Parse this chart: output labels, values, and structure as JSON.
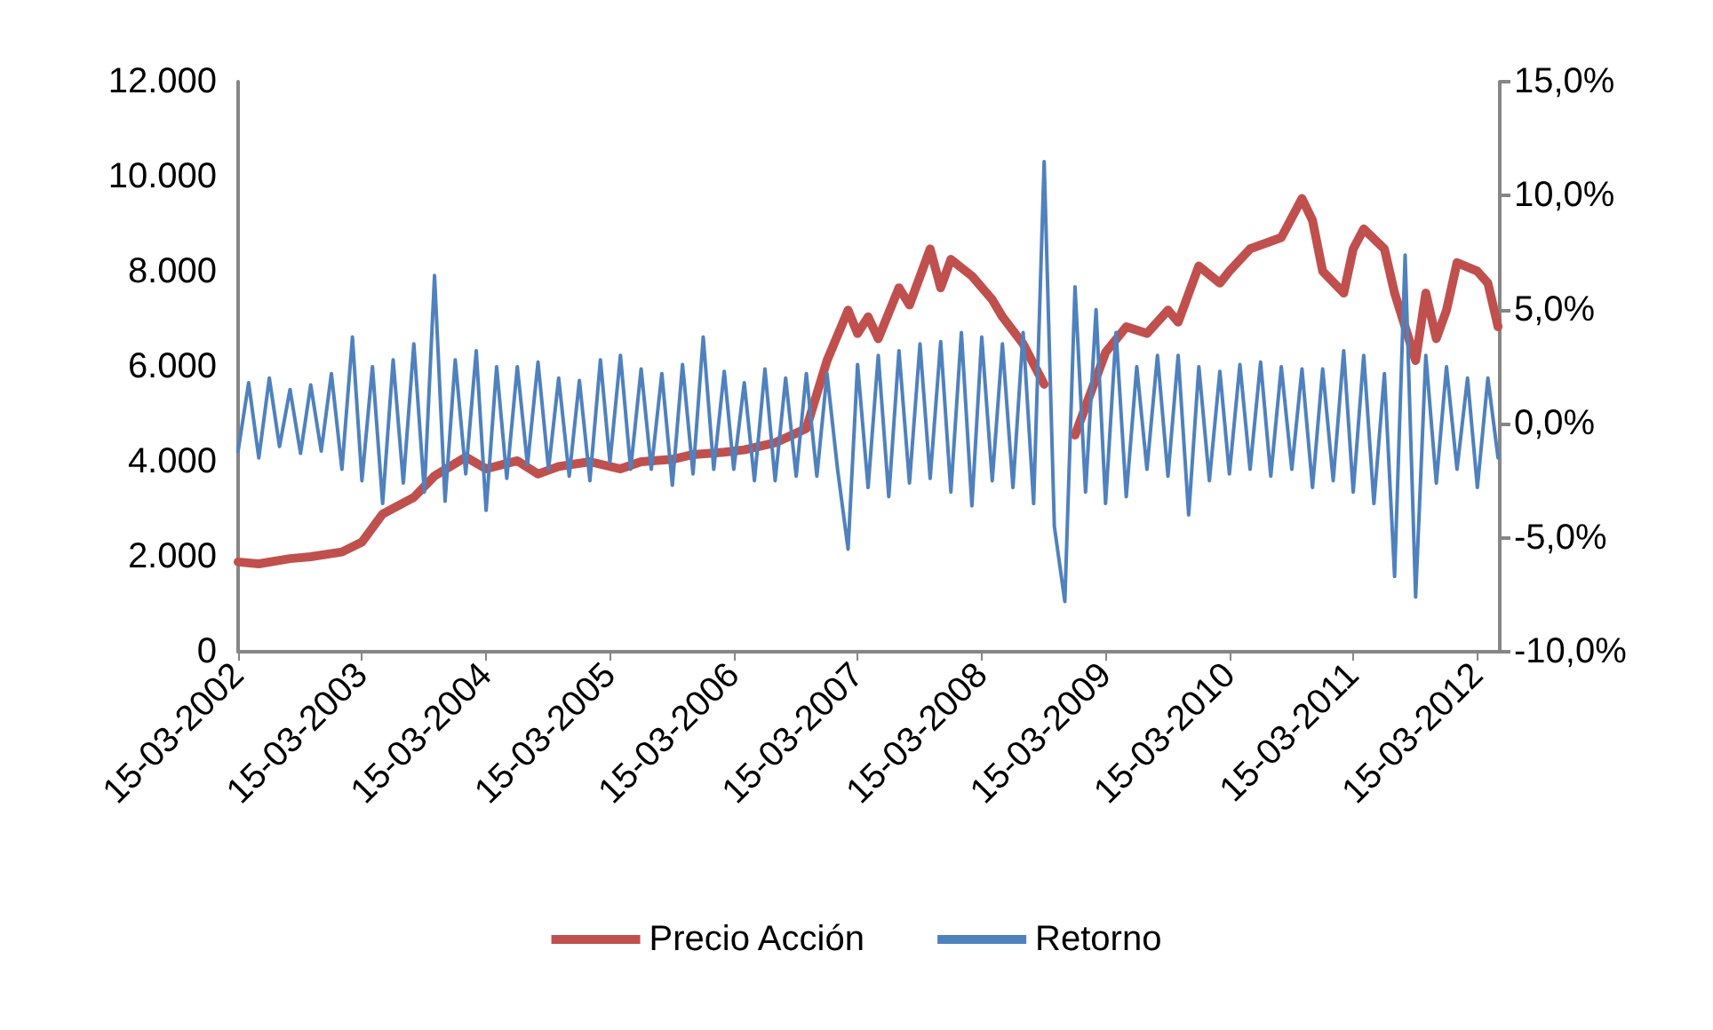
{
  "chart_data": {
    "type": "line",
    "legend": "bottom",
    "grid": false,
    "marker": "none",
    "line_style": "solid",
    "xlim": [
      "2002-03-15",
      "2012-05-20"
    ],
    "xticks": [
      {
        "value": "2002-03-15",
        "label": "15-03-2002"
      },
      {
        "value": "2003-03-15",
        "label": "15-03-2003"
      },
      {
        "value": "2004-03-15",
        "label": "15-03-2004"
      },
      {
        "value": "2005-03-15",
        "label": "15-03-2005"
      },
      {
        "value": "2006-03-15",
        "label": "15-03-2006"
      },
      {
        "value": "2007-03-15",
        "label": "15-03-2007"
      },
      {
        "value": "2008-03-15",
        "label": "15-03-2008"
      },
      {
        "value": "2009-03-15",
        "label": "15-03-2009"
      },
      {
        "value": "2010-03-15",
        "label": "15-03-2010"
      },
      {
        "value": "2011-03-15",
        "label": "15-03-2011"
      },
      {
        "value": "2012-03-15",
        "label": "15-03-2012"
      }
    ],
    "ylim": [
      0,
      12000
    ],
    "yticks": [
      {
        "value": 0,
        "label": "0"
      },
      {
        "value": 2000,
        "label": "2.000"
      },
      {
        "value": 4000,
        "label": "4.000"
      },
      {
        "value": 6000,
        "label": "6.000"
      },
      {
        "value": 8000,
        "label": "8.000"
      },
      {
        "value": 10000,
        "label": "10.000"
      },
      {
        "value": 12000,
        "label": "12.000"
      }
    ],
    "y2lim": [
      -10,
      15
    ],
    "y2ticks": [
      {
        "value": -10,
        "label": "-10,0%"
      },
      {
        "value": -5,
        "label": "-5,0%"
      },
      {
        "value": 0,
        "label": "0,0%"
      },
      {
        "value": 5,
        "label": "5,0%"
      },
      {
        "value": 10,
        "label": "10,0%"
      },
      {
        "value": 15,
        "label": "15,0%"
      }
    ],
    "series": [
      {
        "name": "Precio Acción",
        "color": "#c0504d",
        "x": [
          "2002-03-15",
          "2002-05-15",
          "2002-08-15",
          "2002-10-15",
          "2003-01-15",
          "2003-03-15",
          "2003-05-15",
          "2003-08-15",
          "2003-10-15",
          "2004-01-15",
          "2004-03-15",
          "2004-06-15",
          "2004-08-15",
          "2004-10-15",
          "2005-01-15",
          "2005-04-15",
          "2005-06-15",
          "2005-09-15",
          "2005-11-15",
          "2006-02-15",
          "2006-04-15",
          "2006-07-15",
          "2006-09-15",
          "2006-10-15",
          "2006-12-15",
          "2007-02-15",
          "2007-03-15",
          "2007-04-15",
          "2007-05-15",
          "2007-07-15",
          "2007-08-15",
          "2007-10-15",
          "2007-11-15",
          "2007-12-15",
          "2008-02-15",
          "2008-04-15",
          "2008-05-15",
          "2008-07-15",
          "2008-09-15",
          "2008-10-15",
          "2008-12-15",
          "2009-03-15",
          "2009-05-15",
          "2009-07-15",
          "2009-09-15",
          "2009-10-15",
          "2009-12-15",
          "2010-02-15",
          "2010-03-15",
          "2010-05-15",
          "2010-08-15",
          "2010-10-15",
          "2010-11-15",
          "2010-12-15",
          "2011-02-15",
          "2011-03-15",
          "2011-04-15",
          "2011-06-15",
          "2011-07-15",
          "2011-08-15",
          "2011-09-15",
          "2011-10-15",
          "2011-11-15",
          "2011-12-15",
          "2012-01-15",
          "2012-03-15",
          "2012-04-15",
          "2012-05-15"
        ],
        "values": [
          1890,
          1850,
          1960,
          2000,
          2100,
          2310,
          2900,
          3250,
          3700,
          4100,
          3850,
          4020,
          3740,
          3900,
          4000,
          3850,
          4000,
          4050,
          4150,
          4200,
          4250,
          4400,
          4600,
          4700,
          6130,
          7190,
          6700,
          7050,
          6590,
          7660,
          7300,
          8480,
          7660,
          8260,
          7910,
          7410,
          7050,
          6480,
          5630,
          null,
          4560,
          6300,
          6840,
          6700,
          7190,
          6940,
          8120,
          7760,
          8010,
          8480,
          8720,
          9540,
          9080,
          8010,
          7550,
          8480,
          8900,
          8480,
          7550,
          6840,
          6130,
          7550,
          6590,
          7190,
          8190,
          8010,
          7760,
          6840
        ]
      },
      {
        "name": "Retorno",
        "color": "#4f81bd",
        "axis": "y2",
        "x": [
          "2002-03-15",
          "2002-04-15",
          "2002-05-15",
          "2002-06-15",
          "2002-07-15",
          "2002-08-15",
          "2002-09-15",
          "2002-10-15",
          "2002-11-15",
          "2002-12-15",
          "2003-01-15",
          "2003-02-15",
          "2003-03-15",
          "2003-04-15",
          "2003-05-15",
          "2003-06-15",
          "2003-07-15",
          "2003-08-15",
          "2003-09-15",
          "2003-10-15",
          "2003-11-15",
          "2003-12-15",
          "2004-01-15",
          "2004-02-15",
          "2004-03-15",
          "2004-04-15",
          "2004-05-15",
          "2004-06-15",
          "2004-07-15",
          "2004-08-15",
          "2004-09-15",
          "2004-10-15",
          "2004-11-15",
          "2004-12-15",
          "2005-01-15",
          "2005-02-15",
          "2005-03-15",
          "2005-04-15",
          "2005-05-15",
          "2005-06-15",
          "2005-07-15",
          "2005-08-15",
          "2005-09-15",
          "2005-10-15",
          "2005-11-15",
          "2005-12-15",
          "2006-01-15",
          "2006-02-15",
          "2006-03-15",
          "2006-04-15",
          "2006-05-15",
          "2006-06-15",
          "2006-07-15",
          "2006-08-15",
          "2006-09-15",
          "2006-10-15",
          "2006-11-15",
          "2006-12-15",
          "2007-01-15",
          "2007-02-15",
          "2007-03-15",
          "2007-04-15",
          "2007-05-15",
          "2007-06-15",
          "2007-07-15",
          "2007-08-15",
          "2007-09-15",
          "2007-10-15",
          "2007-11-15",
          "2007-12-15",
          "2008-01-15",
          "2008-02-15",
          "2008-03-15",
          "2008-04-15",
          "2008-05-15",
          "2008-06-15",
          "2008-07-15",
          "2008-08-15",
          "2008-09-15",
          "2008-10-15",
          "2008-11-15",
          "2008-12-15",
          "2009-01-15",
          "2009-02-15",
          "2009-03-15",
          "2009-04-15",
          "2009-05-15",
          "2009-06-15",
          "2009-07-15",
          "2009-08-15",
          "2009-09-15",
          "2009-10-15",
          "2009-11-15",
          "2009-12-15",
          "2010-01-15",
          "2010-02-15",
          "2010-03-15",
          "2010-04-15",
          "2010-05-15",
          "2010-06-15",
          "2010-07-15",
          "2010-08-15",
          "2010-09-15",
          "2010-10-15",
          "2010-11-15",
          "2010-12-15",
          "2011-01-15",
          "2011-02-15",
          "2011-03-15",
          "2011-04-15",
          "2011-05-15",
          "2011-06-15",
          "2011-07-15",
          "2011-08-15",
          "2011-09-15",
          "2011-10-15",
          "2011-11-15",
          "2011-12-15",
          "2012-01-15",
          "2012-02-15",
          "2012-03-15",
          "2012-04-15",
          "2012-05-15"
        ],
        "values": [
          -1.2,
          1.8,
          -1.5,
          2.0,
          -1.0,
          1.5,
          -1.3,
          1.7,
          -1.2,
          2.2,
          -2.0,
          3.8,
          -2.5,
          2.5,
          -3.5,
          2.8,
          -2.6,
          3.5,
          -3.0,
          6.5,
          -3.4,
          2.8,
          -2.2,
          3.2,
          -3.8,
          2.5,
          -2.4,
          2.5,
          -1.8,
          2.7,
          -2.0,
          2.0,
          -2.3,
          1.9,
          -2.5,
          2.8,
          -1.7,
          3.0,
          -2.0,
          2.4,
          -2.0,
          2.2,
          -2.7,
          2.6,
          -2.2,
          3.8,
          -2.0,
          2.3,
          -2.0,
          1.8,
          -2.5,
          2.4,
          -2.5,
          2.0,
          -2.3,
          2.2,
          -2.3,
          2.2,
          -2.0,
          -5.5,
          2.6,
          -2.8,
          3.0,
          -3.2,
          3.2,
          -2.6,
          3.5,
          -2.4,
          3.6,
          -3.0,
          4.0,
          -3.6,
          3.8,
          -2.5,
          3.5,
          -2.8,
          4.0,
          -3.5,
          11.5,
          -4.5,
          -7.8,
          6.0,
          -3.0,
          5.0,
          -3.5,
          4.0,
          -3.2,
          2.5,
          -2.0,
          3.0,
          -2.3,
          3.0,
          -4.0,
          2.5,
          -2.5,
          2.3,
          -2.2,
          2.6,
          -2.0,
          2.7,
          -2.3,
          2.5,
          -2.0,
          2.4,
          -2.8,
          2.4,
          -2.5,
          3.2,
          -3.0,
          3.0,
          -3.5,
          2.2,
          -6.7,
          7.4,
          -7.6,
          3.0,
          -2.6,
          2.5,
          -2.0,
          2.0,
          -2.8,
          2.0,
          -1.5
        ]
      }
    ]
  }
}
